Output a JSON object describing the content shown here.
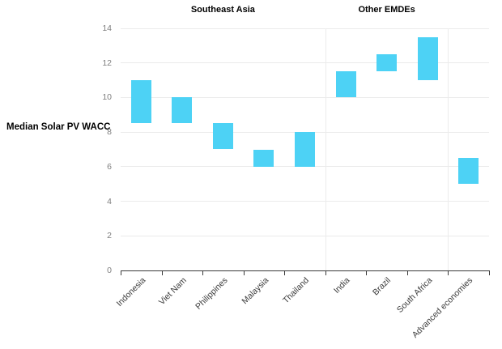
{
  "chart_data": {
    "type": "bar",
    "subtype": "floating-range-columns",
    "title": "",
    "ylabel": "Median Solar PV WACC",
    "xlabel": "",
    "categories": [
      "Indonesia",
      "Viet Nam",
      "Philippines",
      "Malaysia",
      "Thailand",
      "India",
      "Brazil",
      "South Africa",
      "Advanced economies"
    ],
    "series": [
      {
        "name": "Median Solar PV WACC range",
        "ranges": [
          {
            "category": "Indonesia",
            "low": 8.5,
            "high": 11.0
          },
          {
            "category": "Viet Nam",
            "low": 8.5,
            "high": 10.0
          },
          {
            "category": "Philippines",
            "low": 7.0,
            "high": 8.5
          },
          {
            "category": "Malaysia",
            "low": 6.0,
            "high": 7.0
          },
          {
            "category": "Thailand",
            "low": 6.0,
            "high": 8.0
          },
          {
            "category": "India",
            "low": 10.0,
            "high": 11.5
          },
          {
            "category": "Brazil",
            "low": 11.5,
            "high": 12.5
          },
          {
            "category": "South Africa",
            "low": 11.0,
            "high": 13.5
          },
          {
            "category": "Advanced economies",
            "low": 5.0,
            "high": 6.5
          }
        ]
      }
    ],
    "groups": [
      {
        "label": "Southeast Asia",
        "start": 0,
        "end": 4
      },
      {
        "label": "Other EMDEs",
        "start": 5,
        "end": 7
      }
    ],
    "group_separators_after": [
      4,
      7
    ],
    "ylim": [
      0,
      14
    ],
    "yticks": [
      0,
      2,
      4,
      6,
      8,
      10,
      12,
      14
    ],
    "grid": "horizontal-major",
    "legend": "none",
    "bar_color": "#4DD2F5",
    "grid_color": "#ebebeb",
    "axis_color": "#3a3a3a",
    "ytick_color": "#7f7f7f",
    "xtick_color": "#3c3c3c"
  }
}
